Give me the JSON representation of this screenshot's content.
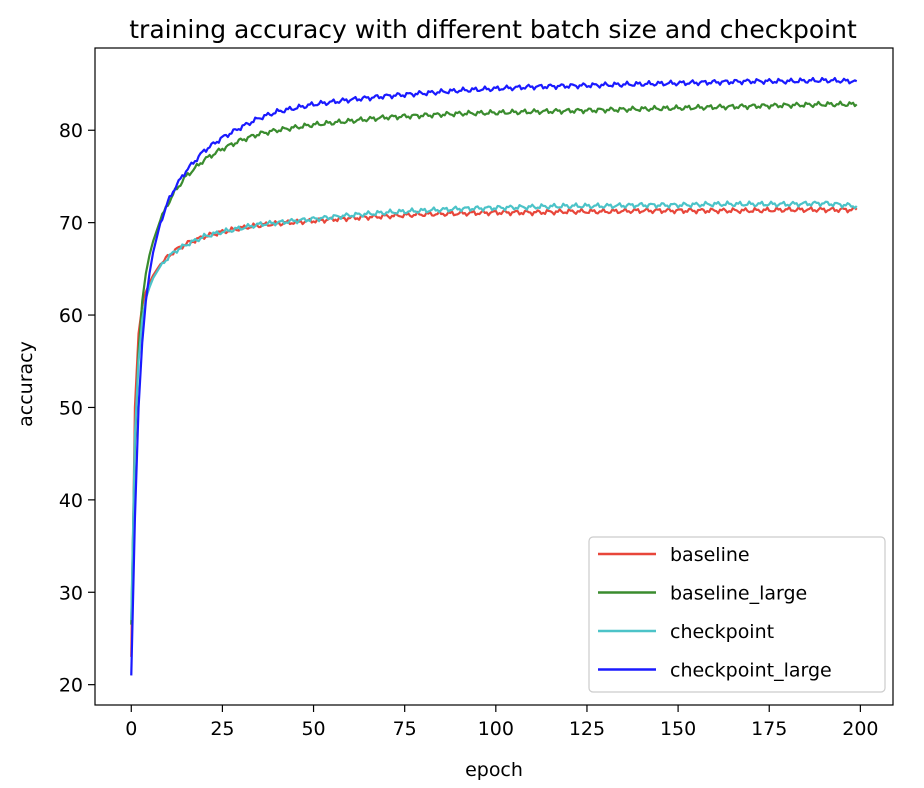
{
  "chart_data": {
    "type": "line",
    "title": "training accuracy with different batch size and checkpoint",
    "xlabel": "epoch",
    "ylabel": "accuracy",
    "xlim": [
      -9.95,
      208.95
    ],
    "ylim": [
      17.8,
      88.9
    ],
    "xticks": [
      0,
      25,
      50,
      75,
      100,
      125,
      150,
      175,
      200
    ],
    "yticks": [
      20,
      30,
      40,
      50,
      60,
      70,
      80
    ],
    "grid": false,
    "legend_position": "lower right",
    "series": [
      {
        "name": "baseline",
        "color": "#e8463a",
        "x": [
          0,
          1,
          2,
          3,
          4,
          5,
          6,
          8,
          10,
          12,
          15,
          20,
          25,
          30,
          35,
          40,
          50,
          60,
          70,
          80,
          90,
          100,
          110,
          120,
          130,
          140,
          150,
          160,
          170,
          180,
          190,
          199
        ],
        "values": [
          23.0,
          50.0,
          58.0,
          61.0,
          62.5,
          63.5,
          64.3,
          65.5,
          66.3,
          67.0,
          67.7,
          68.5,
          69.0,
          69.4,
          69.7,
          69.9,
          70.2,
          70.5,
          70.7,
          70.9,
          71.0,
          71.1,
          71.1,
          71.2,
          71.2,
          71.3,
          71.3,
          71.3,
          71.3,
          71.4,
          71.4,
          71.4
        ]
      },
      {
        "name": "baseline_large",
        "color": "#3a8c2e",
        "x": [
          0,
          1,
          2,
          3,
          4,
          5,
          6,
          8,
          10,
          12,
          15,
          20,
          25,
          30,
          35,
          40,
          50,
          60,
          70,
          80,
          90,
          100,
          110,
          120,
          130,
          140,
          150,
          160,
          170,
          180,
          190,
          199
        ],
        "values": [
          26.5,
          46.0,
          56.0,
          61.5,
          64.5,
          66.5,
          68.0,
          70.3,
          72.0,
          73.4,
          75.0,
          76.8,
          78.0,
          78.9,
          79.6,
          80.0,
          80.6,
          81.0,
          81.4,
          81.6,
          81.8,
          81.9,
          82.0,
          82.1,
          82.2,
          82.3,
          82.4,
          82.5,
          82.6,
          82.7,
          82.8,
          82.8
        ]
      },
      {
        "name": "checkpoint",
        "color": "#4cc3c8",
        "x": [
          0,
          1,
          2,
          3,
          4,
          5,
          6,
          8,
          10,
          12,
          15,
          20,
          25,
          30,
          35,
          40,
          50,
          60,
          70,
          80,
          90,
          100,
          110,
          120,
          130,
          140,
          150,
          160,
          170,
          180,
          190,
          199
        ],
        "values": [
          27.0,
          47.0,
          55.0,
          59.5,
          61.8,
          63.0,
          64.0,
          65.3,
          66.2,
          66.9,
          67.6,
          68.5,
          69.0,
          69.4,
          69.8,
          70.0,
          70.4,
          70.8,
          71.1,
          71.3,
          71.5,
          71.6,
          71.7,
          71.8,
          71.8,
          71.9,
          71.9,
          72.0,
          72.0,
          72.0,
          72.1,
          71.8
        ]
      },
      {
        "name": "checkpoint_large",
        "color": "#1a1aff",
        "x": [
          0,
          1,
          2,
          3,
          4,
          5,
          6,
          8,
          10,
          12,
          15,
          20,
          25,
          30,
          35,
          40,
          50,
          60,
          70,
          80,
          90,
          100,
          110,
          120,
          130,
          140,
          150,
          160,
          170,
          180,
          190,
          199
        ],
        "values": [
          21.0,
          38.0,
          50.0,
          57.0,
          61.5,
          64.5,
          66.8,
          70.0,
          72.2,
          73.8,
          75.6,
          77.8,
          79.2,
          80.3,
          81.3,
          82.0,
          82.8,
          83.3,
          83.7,
          84.0,
          84.3,
          84.5,
          84.7,
          84.8,
          84.9,
          85.0,
          85.1,
          85.2,
          85.3,
          85.3,
          85.4,
          85.3
        ]
      }
    ]
  }
}
